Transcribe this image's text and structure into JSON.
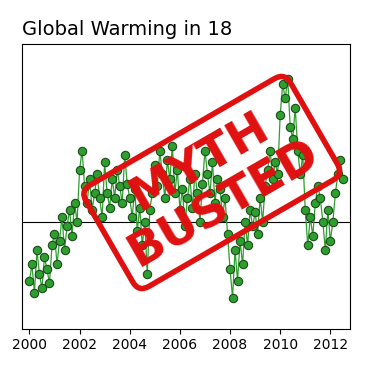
{
  "chart_data": {
    "type": "line",
    "title": "Global Warming in 18",
    "x": [
      2000.0,
      2000.1,
      2000.2,
      2000.3,
      2000.4,
      2000.5,
      2000.6,
      2000.7,
      2000.8,
      2000.9,
      2001.0,
      2001.1,
      2001.2,
      2001.3,
      2001.4,
      2001.5,
      2001.6,
      2001.7,
      2001.8,
      2001.9,
      2002.0,
      2002.1,
      2002.2,
      2002.3,
      2002.4,
      2002.5,
      2002.6,
      2002.7,
      2002.8,
      2002.9,
      2003.0,
      2003.1,
      2003.2,
      2003.3,
      2003.4,
      2003.5,
      2003.6,
      2003.7,
      2003.8,
      2003.9,
      2004.0,
      2004.1,
      2004.2,
      2004.3,
      2004.4,
      2004.5,
      2004.6,
      2004.7,
      2004.8,
      2004.9,
      2005.0,
      2005.1,
      2005.2,
      2005.3,
      2005.4,
      2005.5,
      2005.6,
      2005.7,
      2005.8,
      2005.9,
      2006.0,
      2006.1,
      2006.2,
      2006.3,
      2006.4,
      2006.5,
      2006.6,
      2006.7,
      2006.8,
      2006.9,
      2007.0,
      2007.1,
      2007.2,
      2007.3,
      2007.4,
      2007.5,
      2007.6,
      2007.7,
      2007.8,
      2007.9,
      2008.0,
      2008.1,
      2008.2,
      2008.3,
      2008.4,
      2008.5,
      2008.6,
      2008.7,
      2008.8,
      2008.9,
      2009.0,
      2009.1,
      2009.2,
      2009.3,
      2009.4,
      2009.5,
      2009.6,
      2009.7,
      2009.8,
      2009.9,
      2010.0,
      2010.1,
      2010.2,
      2010.3,
      2010.4,
      2010.5,
      2010.6,
      2010.7,
      2010.8,
      2010.9,
      2011.0,
      2011.1,
      2011.2,
      2011.3,
      2011.4,
      2011.5,
      2011.6,
      2011.7,
      2011.8,
      2011.9,
      2012.0,
      2012.1,
      2012.2,
      2012.3,
      2012.4,
      2012.5
    ],
    "values": [
      -0.25,
      -0.18,
      -0.3,
      -0.12,
      -0.22,
      -0.28,
      -0.15,
      -0.2,
      -0.26,
      -0.1,
      -0.05,
      -0.18,
      -0.08,
      0.02,
      -0.12,
      -0.02,
      0.05,
      -0.06,
      0.08,
      0.0,
      0.22,
      0.3,
      0.15,
      0.08,
      0.18,
      0.05,
      0.12,
      0.2,
      0.1,
      0.02,
      0.25,
      0.12,
      0.06,
      0.18,
      0.1,
      0.22,
      0.15,
      0.08,
      0.28,
      0.16,
      0.1,
      0.02,
      0.14,
      -0.04,
      0.06,
      -0.1,
      0.0,
      -0.22,
      0.05,
      0.12,
      0.24,
      0.15,
      0.3,
      0.2,
      0.1,
      0.26,
      0.18,
      0.32,
      0.12,
      0.22,
      0.05,
      0.14,
      -0.02,
      0.1,
      0.18,
      0.06,
      0.2,
      0.12,
      0.0,
      0.16,
      0.3,
      0.2,
      0.12,
      0.25,
      0.08,
      0.18,
      0.14,
      0.02,
      0.1,
      -0.05,
      -0.2,
      -0.32,
      -0.12,
      -0.25,
      -0.08,
      -0.18,
      0.0,
      -0.1,
      0.05,
      -0.02,
      0.04,
      -0.05,
      0.1,
      0.0,
      0.15,
      0.22,
      0.3,
      0.18,
      0.25,
      0.2,
      0.45,
      0.58,
      0.52,
      0.6,
      0.4,
      0.35,
      0.48,
      0.3,
      0.2,
      0.28,
      0.05,
      -0.1,
      0.02,
      -0.06,
      0.08,
      0.15,
      0.1,
      0.0,
      -0.12,
      0.05,
      -0.08,
      0.0,
      0.12,
      0.2,
      0.26,
      0.18
    ],
    "color": "#2e9e2e",
    "marker": "circle",
    "line_style": "solid",
    "xlim": [
      1999.7,
      2012.8
    ],
    "xticks": [
      2000,
      2002,
      2004,
      2006,
      2008,
      2010,
      2012
    ],
    "ylim": [
      -0.45,
      0.75
    ],
    "yticks": [
      0
    ],
    "grid": "y",
    "tick_labels": "x",
    "annotations": [
      "MYTH",
      "BUSTED"
    ]
  }
}
